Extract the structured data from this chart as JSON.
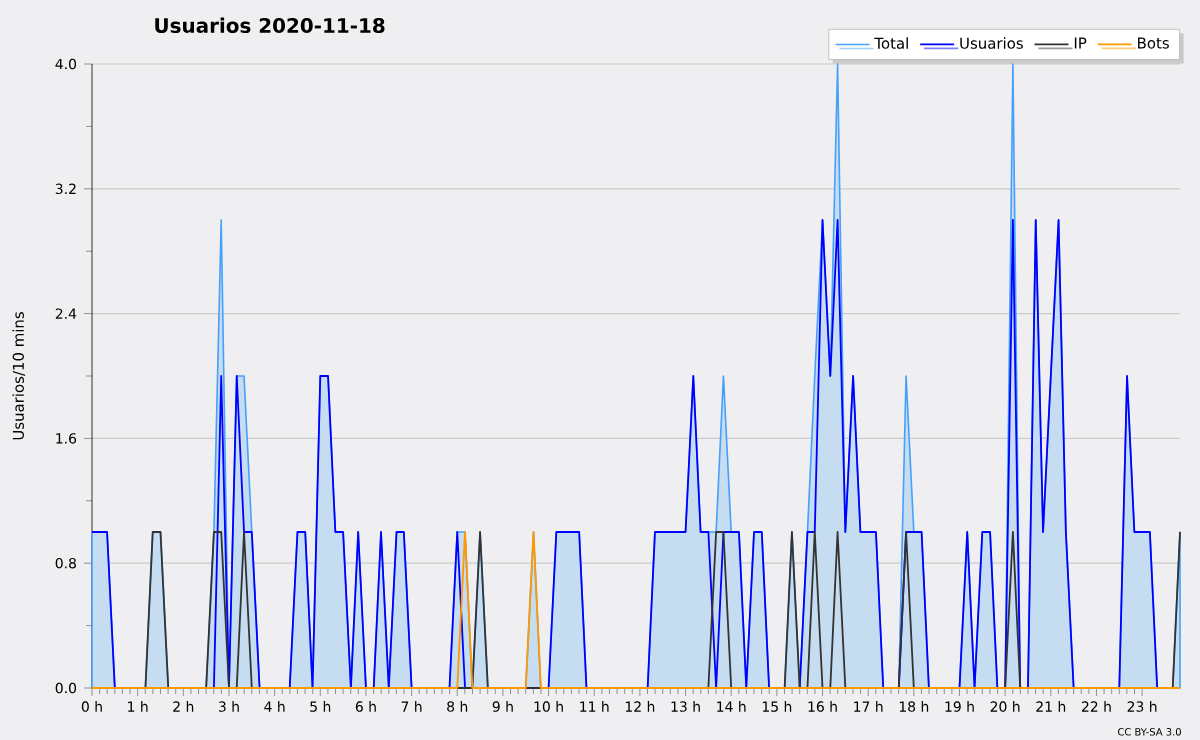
{
  "chart_data": {
    "type": "line",
    "title": "Usuarios  2020-11-18",
    "ylabel": "Usuarios/10 mins",
    "xlim": [
      0,
      23.83
    ],
    "xticks": [
      {
        "value": 0,
        "label": "0 h"
      },
      {
        "value": 1,
        "label": "1 h"
      },
      {
        "value": 2,
        "label": "2 h"
      },
      {
        "value": 3,
        "label": "3 h"
      },
      {
        "value": 4,
        "label": "4 h"
      },
      {
        "value": 5,
        "label": "5 h"
      },
      {
        "value": 6,
        "label": "6 h"
      },
      {
        "value": 7,
        "label": "7 h"
      },
      {
        "value": 8,
        "label": "8 h"
      },
      {
        "value": 9,
        "label": "9 h"
      },
      {
        "value": 10,
        "label": "10 h"
      },
      {
        "value": 11,
        "label": "11 h"
      },
      {
        "value": 12,
        "label": "12 h"
      },
      {
        "value": 13,
        "label": "13 h"
      },
      {
        "value": 14,
        "label": "14 h"
      },
      {
        "value": 15,
        "label": "15 h"
      },
      {
        "value": 16,
        "label": "16 h"
      },
      {
        "value": 17,
        "label": "17 h"
      },
      {
        "value": 18,
        "label": "18 h"
      },
      {
        "value": 19,
        "label": "19 h"
      },
      {
        "value": 20,
        "label": "20 h"
      },
      {
        "value": 21,
        "label": "21 h"
      },
      {
        "value": 22,
        "label": "22 h"
      },
      {
        "value": 23,
        "label": "23 h"
      }
    ],
    "ylim": [
      0,
      4
    ],
    "yticks": [
      {
        "value": 0,
        "label": "0.0"
      },
      {
        "value": 0.8,
        "label": "0.8"
      },
      {
        "value": 1.6,
        "label": "1.6"
      },
      {
        "value": 2.4,
        "label": "2.4"
      },
      {
        "value": 3.2,
        "label": "3.2"
      },
      {
        "value": 4,
        "label": "4.0"
      }
    ],
    "grid": "y",
    "legend": "top right",
    "annotations": [
      "CC BY-SA 3.0"
    ],
    "series": [
      {
        "name": "Total",
        "type": "area",
        "color": "#c6dcf0",
        "x": [
          0,
          0.33,
          0.5,
          1.17,
          1.33,
          1.5,
          1.67,
          2.5,
          2.67,
          2.83,
          3.0,
          3.17,
          3.33,
          3.5,
          3.67,
          4.33,
          4.5,
          4.67,
          4.83,
          5.0,
          5.17,
          5.33,
          5.5,
          5.67,
          5.83,
          6.0,
          6.17,
          6.33,
          6.5,
          6.67,
          6.83,
          7.0,
          7.83,
          8.0,
          8.17,
          8.33,
          8.5,
          8.67,
          9.5,
          9.67,
          9.83,
          10.0,
          10.17,
          10.67,
          10.83,
          12.17,
          12.33,
          13.0,
          13.17,
          13.33,
          13.5,
          13.67,
          13.83,
          14.0,
          14.17,
          14.33,
          14.5,
          14.67,
          14.83,
          15.17,
          15.33,
          15.5,
          15.67,
          15.83,
          16.0,
          16.17,
          16.33,
          16.5,
          16.67,
          16.83,
          17.17,
          17.33,
          17.67,
          17.83,
          18.0,
          18.17,
          18.33,
          19.0,
          19.17,
          19.33,
          19.5,
          19.67,
          19.83,
          20.0,
          20.17,
          20.33,
          20.5,
          20.67,
          20.83,
          21.0,
          21.17,
          21.33,
          21.5,
          22.5,
          22.67,
          22.83,
          23.17,
          23.33,
          23.67,
          23.83
        ],
        "values": [
          1,
          1,
          0,
          0,
          1,
          1,
          0,
          0,
          1,
          3,
          0,
          2,
          2,
          1,
          0,
          0,
          1,
          1,
          0,
          2,
          2,
          1,
          1,
          0,
          1,
          0,
          0,
          1,
          0,
          1,
          1,
          0,
          0,
          1,
          1,
          0,
          1,
          0,
          0,
          1,
          0,
          0,
          1,
          1,
          0,
          0,
          1,
          1,
          2,
          1,
          1,
          1,
          2,
          1,
          1,
          0,
          1,
          1,
          0,
          0,
          1,
          0,
          1,
          2,
          3,
          2,
          4,
          1,
          2,
          1,
          1,
          0,
          0,
          2,
          1,
          1,
          0,
          0,
          1,
          0,
          1,
          1,
          0,
          0,
          4,
          0,
          0,
          3,
          1,
          2,
          3,
          1,
          0,
          0,
          2,
          1,
          1,
          0,
          0,
          1
        ]
      },
      {
        "name": "Usuarios",
        "color": "#0000ff",
        "x": [
          0,
          0.33,
          0.5,
          2.67,
          2.83,
          3.0,
          3.17,
          3.33,
          3.5,
          3.67,
          4.33,
          4.5,
          4.67,
          4.83,
          5.0,
          5.17,
          5.33,
          5.5,
          5.67,
          5.83,
          6.0,
          6.17,
          6.33,
          6.5,
          6.67,
          6.83,
          7.0,
          7.83,
          8.0,
          8.17,
          10.0,
          10.17,
          10.67,
          10.83,
          12.17,
          12.33,
          13.0,
          13.17,
          13.33,
          13.5,
          13.67,
          13.83,
          14.17,
          14.33,
          14.5,
          14.67,
          14.83,
          15.5,
          15.67,
          15.83,
          16.0,
          16.17,
          16.33,
          16.5,
          16.67,
          16.83,
          17.17,
          17.33,
          17.67,
          17.83,
          18.17,
          18.33,
          19.0,
          19.17,
          19.33,
          19.5,
          19.67,
          19.83,
          20.0,
          20.17,
          20.33,
          20.5,
          20.67,
          20.83,
          21.0,
          21.17,
          21.33,
          21.5,
          22.5,
          22.67,
          22.83,
          23.17,
          23.33,
          23.83
        ],
        "values": [
          1,
          1,
          0,
          0,
          2,
          0,
          2,
          1,
          1,
          0,
          0,
          1,
          1,
          0,
          2,
          2,
          1,
          1,
          0,
          1,
          0,
          0,
          1,
          0,
          1,
          1,
          0,
          0,
          1,
          0,
          0,
          1,
          1,
          0,
          0,
          1,
          1,
          2,
          1,
          1,
          0,
          1,
          1,
          0,
          1,
          1,
          0,
          0,
          1,
          1,
          3,
          2,
          3,
          1,
          2,
          1,
          1,
          0,
          0,
          1,
          1,
          0,
          0,
          1,
          0,
          1,
          1,
          0,
          0,
          3,
          0,
          0,
          3,
          1,
          2,
          3,
          1,
          0,
          0,
          2,
          1,
          1,
          0,
          0
        ]
      },
      {
        "name": "IP",
        "color": "#333333",
        "x": [
          0,
          1.17,
          1.33,
          1.5,
          1.67,
          2.5,
          2.67,
          2.83,
          3.0,
          3.17,
          3.33,
          3.5,
          8.33,
          8.5,
          8.67,
          13.5,
          13.67,
          13.83,
          14.0,
          15.17,
          15.33,
          15.5,
          15.67,
          15.83,
          16.0,
          16.17,
          16.33,
          16.5,
          17.67,
          17.83,
          18.0,
          20.0,
          20.17,
          20.33,
          23.67,
          23.83
        ],
        "values": [
          0,
          0,
          1,
          1,
          0,
          0,
          1,
          1,
          0,
          0,
          1,
          0,
          0,
          1,
          0,
          0,
          1,
          1,
          0,
          0,
          1,
          0,
          0,
          1,
          0,
          0,
          1,
          0,
          0,
          1,
          0,
          0,
          1,
          0,
          0,
          1
        ]
      },
      {
        "name": "Bots",
        "color": "#ff9900",
        "x": [
          0,
          8.0,
          8.17,
          8.33,
          9.5,
          9.67,
          9.83,
          23.83
        ],
        "values": [
          0,
          0,
          1,
          0,
          0,
          1,
          0,
          0
        ]
      }
    ]
  }
}
